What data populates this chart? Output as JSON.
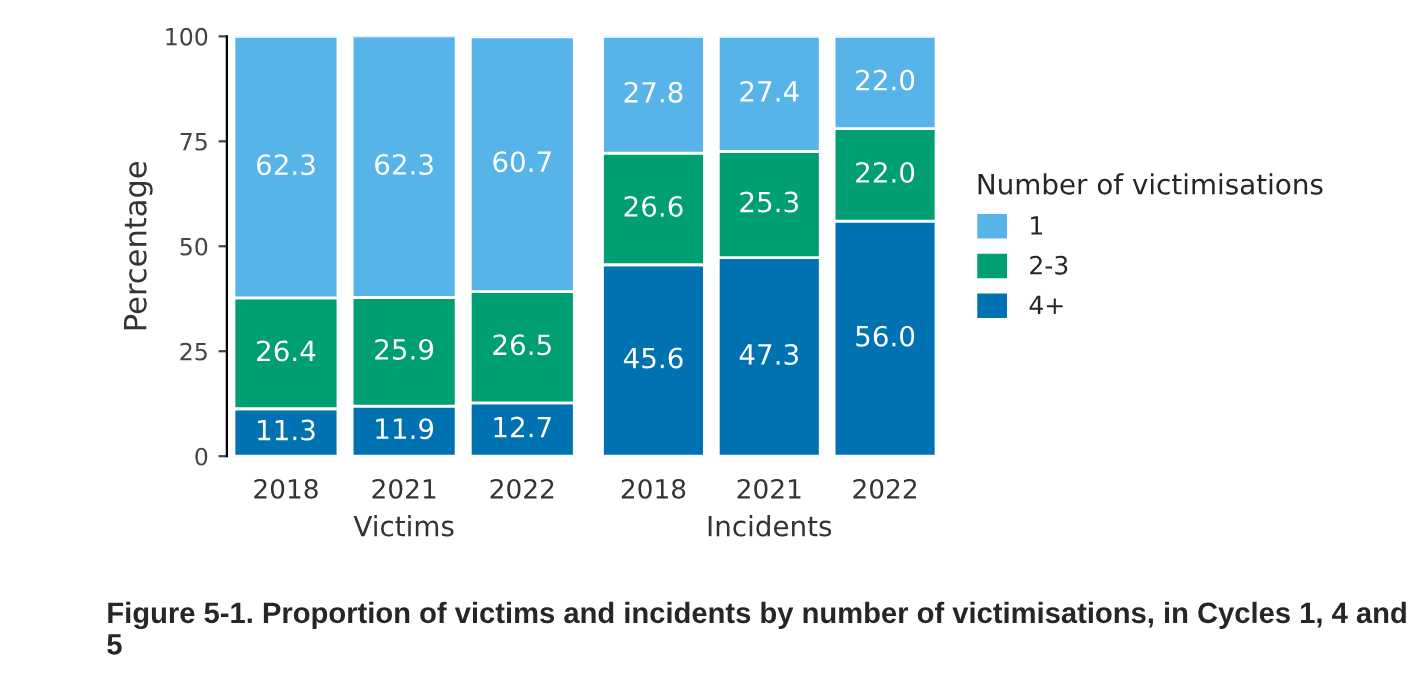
{
  "chart_data": [
    {
      "type": "bar",
      "stacked": true,
      "title": "Figure 5-1. Proportion of victims and incidents by number of victimisations, in Cycles 1, 4 and 5",
      "xlabel": "Victims",
      "ylabel": "Percentage",
      "categories": [
        "2018",
        "2021",
        "2022"
      ],
      "ylim": [
        0,
        100
      ],
      "yticks": [
        0,
        25,
        50,
        75,
        100
      ],
      "series": [
        {
          "color": "#0072b2",
          "values": [
            11.3,
            11.9,
            12.7
          ],
          "value_labels": [
            "11.3",
            "11.9",
            "12.7"
          ]
        },
        {
          "color": "#009e73",
          "values": [
            26.4,
            25.9,
            26.5
          ],
          "value_labels": [
            "26.4",
            "25.9",
            "26.5"
          ]
        },
        {
          "color": "#56b4e9",
          "values": [
            62.3,
            62.3,
            60.7
          ],
          "value_labels": [
            "62.3",
            "62.3",
            "60.7"
          ]
        }
      ]
    },
    {
      "type": "bar",
      "stacked": true,
      "xlabel": "Incidents",
      "categories": [
        "2018",
        "2021",
        "2022"
      ],
      "ylim": [
        0,
        100
      ],
      "yticks": [
        0,
        25,
        50,
        75,
        100
      ],
      "tick_labels": "x",
      "legend": "right",
      "legend_title": "Number of victimisations",
      "series": [
        {
          "name": "4+",
          "color": "#0072b2",
          "values": [
            45.6,
            47.3,
            56.0
          ],
          "value_labels": [
            "45.6",
            "47.3",
            "56.0"
          ]
        },
        {
          "name": "2-3",
          "color": "#009e73",
          "values": [
            26.6,
            25.3,
            22.0
          ],
          "value_labels": [
            "26.6",
            "25.3",
            "22.0"
          ]
        },
        {
          "name": "1",
          "color": "#56b4e9",
          "values": [
            27.8,
            27.4,
            22.0
          ],
          "value_labels": [
            "27.8",
            "27.4",
            "22.0"
          ]
        }
      ]
    }
  ]
}
